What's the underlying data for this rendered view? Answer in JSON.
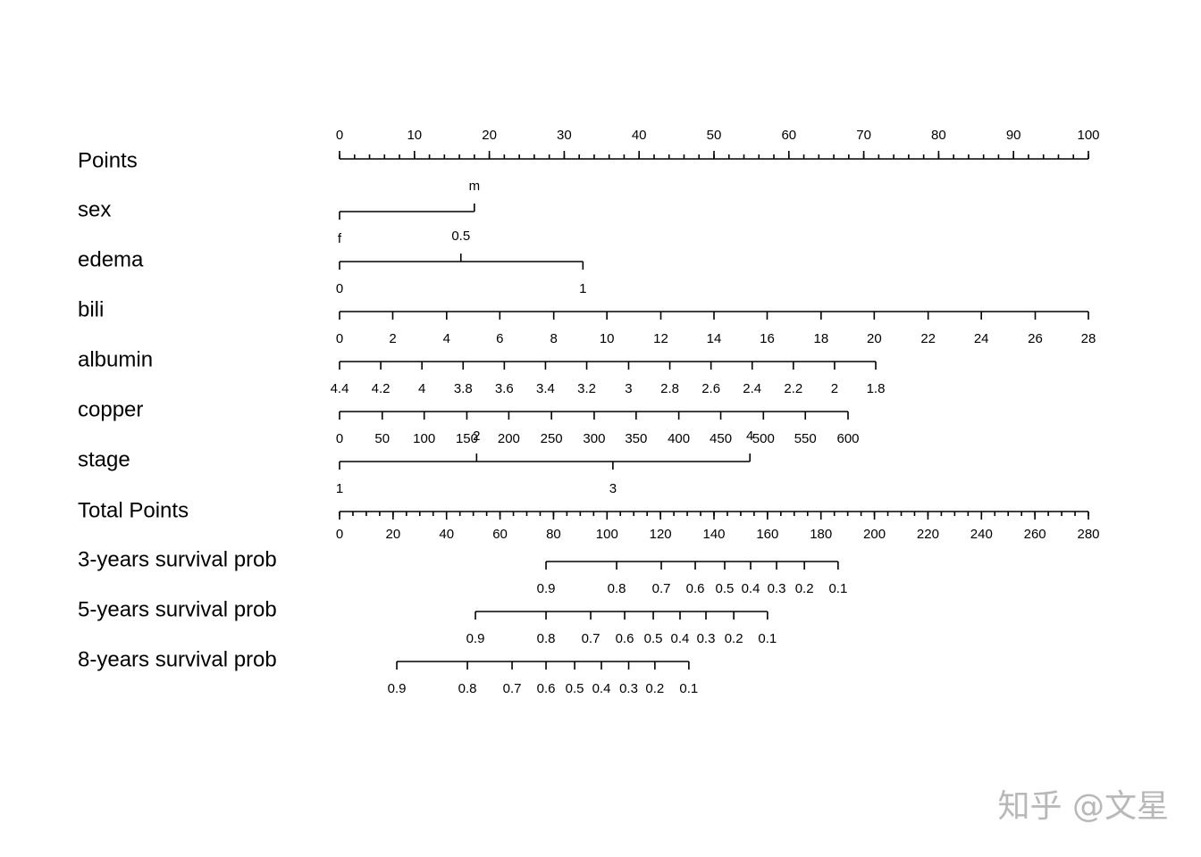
{
  "chart_data": {
    "type": "nomogram",
    "watermark": "知乎 @文星",
    "points_axis": {
      "name": "Points",
      "lim": [
        0,
        100
      ],
      "ticks": [
        0,
        10,
        20,
        30,
        40,
        50,
        60,
        70,
        80,
        90,
        100
      ],
      "minor_step": 2
    },
    "total_axis": {
      "name": "Total Points",
      "lim": [
        0,
        280
      ],
      "ticks": [
        0,
        20,
        40,
        60,
        80,
        100,
        120,
        140,
        160,
        180,
        200,
        220,
        240,
        260,
        280
      ],
      "minor_step": 5
    },
    "variables": [
      {
        "name": "sex",
        "labels": [
          "f",
          "m"
        ],
        "points": [
          0,
          18.0
        ],
        "alternate": true
      },
      {
        "name": "edema",
        "labels": [
          0,
          0.5,
          1
        ],
        "points": [
          0,
          16.2,
          32.5
        ],
        "alternate": true
      },
      {
        "name": "bili",
        "labels": [
          0,
          2,
          4,
          6,
          8,
          10,
          12,
          14,
          16,
          18,
          20,
          22,
          24,
          26,
          28
        ],
        "points": [
          0,
          7.1,
          14.3,
          21.4,
          28.6,
          35.7,
          42.9,
          50,
          57.1,
          64.3,
          71.4,
          78.6,
          85.7,
          92.9,
          100
        ]
      },
      {
        "name": "albumin",
        "labels": [
          4.4,
          4.2,
          4,
          3.8,
          3.6,
          3.4,
          3.2,
          3,
          2.8,
          2.6,
          2.4,
          2.2,
          2,
          1.8
        ],
        "points": [
          0,
          5.5,
          11.0,
          16.5,
          22.0,
          27.5,
          33.0,
          38.6,
          44.1,
          49.6,
          55.1,
          60.6,
          66.1,
          71.6
        ]
      },
      {
        "name": "copper",
        "labels": [
          0,
          50,
          100,
          150,
          200,
          250,
          300,
          350,
          400,
          450,
          500,
          550,
          600
        ],
        "points": [
          0,
          5.7,
          11.3,
          17.0,
          22.6,
          28.3,
          34.0,
          39.6,
          45.3,
          50.9,
          56.6,
          62.2,
          67.9
        ]
      },
      {
        "name": "stage",
        "labels": [
          1,
          2,
          3,
          4
        ],
        "points": [
          0,
          18.3,
          36.5,
          54.8
        ],
        "alternate": true
      }
    ],
    "outcomes": [
      {
        "name": "3-years survival prob",
        "labels": [
          0.9,
          0.8,
          0.7,
          0.6,
          0.5,
          0.4,
          0.3,
          0.2,
          0.1
        ],
        "total_points": [
          77.2,
          103.6,
          120.3,
          133.0,
          144.0,
          153.7,
          163.4,
          173.8,
          186.4
        ]
      },
      {
        "name": "5-years survival prob",
        "labels": [
          0.9,
          0.8,
          0.7,
          0.6,
          0.5,
          0.4,
          0.3,
          0.2,
          0.1
        ],
        "total_points": [
          50.8,
          77.2,
          93.9,
          106.6,
          117.3,
          127.3,
          137.0,
          147.4,
          160.0
        ]
      },
      {
        "name": "8-years survival prob",
        "labels": [
          0.9,
          0.8,
          0.7,
          0.6,
          0.5,
          0.4,
          0.3,
          0.2,
          0.1
        ],
        "total_points": [
          21.4,
          47.8,
          64.5,
          77.2,
          87.9,
          97.9,
          108.1,
          117.9,
          130.6
        ]
      }
    ]
  }
}
